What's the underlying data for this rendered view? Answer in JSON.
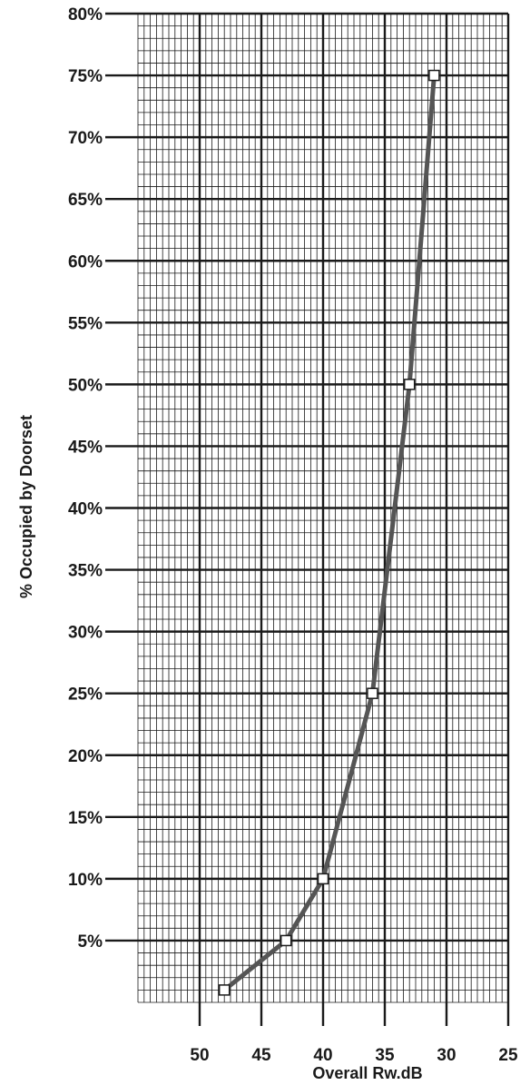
{
  "chart_data": {
    "type": "line",
    "title": "",
    "xlabel": "Overall Rw.dB",
    "ylabel": "% Occupied by Doorset",
    "x_reversed": true,
    "xlim": [
      55,
      25
    ],
    "ylim": [
      0,
      80
    ],
    "x_tick_labels": [
      "50",
      "45",
      "40",
      "35",
      "30",
      "25"
    ],
    "x_tick_values": [
      50,
      45,
      40,
      35,
      30,
      25
    ],
    "y_tick_labels": [
      "5%",
      "10%",
      "15%",
      "20%",
      "25%",
      "30%",
      "35%",
      "40%",
      "45%",
      "50%",
      "55%",
      "60%",
      "65%",
      "70%",
      "75%",
      "80%"
    ],
    "y_tick_values": [
      5,
      10,
      15,
      20,
      25,
      30,
      35,
      40,
      45,
      50,
      55,
      60,
      65,
      70,
      75,
      80
    ],
    "grid": true,
    "series": [
      {
        "x": [
          48,
          43,
          40,
          36,
          33,
          31
        ],
        "y": [
          1,
          5,
          10,
          25,
          50,
          75
        ]
      }
    ],
    "colors": {
      "line": "#555555",
      "grid": "#1a1a1a",
      "marker_fill": "#ffffff"
    }
  }
}
